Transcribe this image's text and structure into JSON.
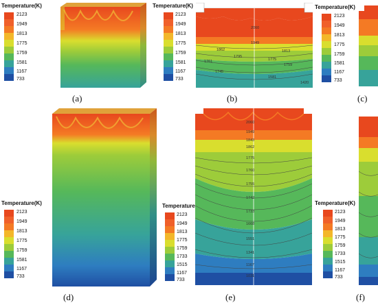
{
  "figure": {
    "colors": {
      "c2123": "#e8481e",
      "c1949": "#f47a24",
      "c1813": "#d9de2e",
      "c1775": "#9dcc3a",
      "c1759": "#56b85a",
      "c1581": "#37a39a",
      "c1167": "#2e7dc0",
      "c733": "#1f4fa3",
      "grid": "#ffffff"
    },
    "legends": [
      {
        "title": "Temperature(K)",
        "ticks": [
          "2123",
          "1949",
          "1813",
          "1775",
          "1759",
          "1581",
          "1167",
          "733"
        ]
      },
      {
        "title": "Temperature(K)",
        "ticks": [
          "2123",
          "1949",
          "1813",
          "1775",
          "1759",
          "1581",
          "1167",
          "733"
        ]
      },
      {
        "title": "Temperature(K)",
        "ticks": [
          "2123",
          "1949",
          "1813",
          "1775",
          "1759",
          "1581",
          "1167",
          "733"
        ]
      },
      {
        "title": "Temperature(K)",
        "ticks": [
          "2123",
          "1949",
          "1813",
          "1775",
          "1759",
          "1581",
          "1167",
          "733"
        ]
      },
      {
        "title": "Temperature(K)",
        "ticks": [
          "2123",
          "1949",
          "1813",
          "1775",
          "1759",
          "1733",
          "1515",
          "1167",
          "733"
        ]
      },
      {
        "title": "Temperature(K)",
        "ticks": [
          "2123",
          "1949",
          "1813",
          "1775",
          "1759",
          "1733",
          "1515",
          "1167",
          "733"
        ]
      }
    ],
    "captions": [
      "(a)",
      "(b)",
      "(c)",
      "(d)",
      "(e)",
      "(f)"
    ],
    "contour_labels_b": [
      "2060",
      "1949",
      "1862",
      "1813",
      "1795",
      "1775",
      "1761",
      "1759",
      "1745",
      "1581",
      "1420"
    ],
    "contour_labels_e": [
      "2060",
      "1949",
      "1843",
      "1862",
      "1775",
      "1760",
      "1755",
      "1742",
      "1733",
      "1668",
      "1551",
      "1341",
      "1167",
      "1031"
    ]
  }
}
